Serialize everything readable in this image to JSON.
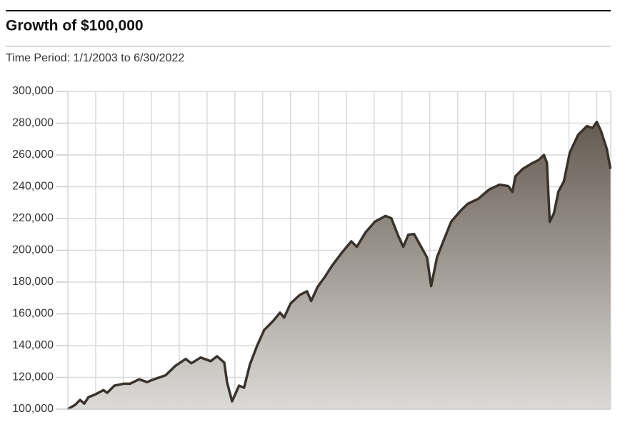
{
  "chart_data": {
    "type": "area",
    "title": "Growth of $100,000",
    "subtitle": "Time Period: 1/1/2003 to 6/30/2022",
    "x": [
      2003.0,
      2003.26,
      2003.44,
      2003.59,
      2003.74,
      2004.0,
      2004.28,
      2004.41,
      2004.67,
      2005.0,
      2005.23,
      2005.56,
      2005.85,
      2006.0,
      2006.51,
      2006.85,
      2007.23,
      2007.44,
      2007.77,
      2008.13,
      2008.36,
      2008.62,
      2008.72,
      2008.9,
      2009.15,
      2009.33,
      2009.54,
      2009.79,
      2010.05,
      2010.36,
      2010.62,
      2010.77,
      2011.0,
      2011.33,
      2011.59,
      2011.74,
      2011.97,
      2012.23,
      2012.49,
      2012.82,
      2013.18,
      2013.38,
      2013.69,
      2014.03,
      2014.41,
      2014.62,
      2014.87,
      2015.05,
      2015.23,
      2015.44,
      2015.69,
      2015.9,
      2016.05,
      2016.26,
      2016.51,
      2016.77,
      2017.1,
      2017.36,
      2017.74,
      2018.13,
      2018.51,
      2018.82,
      2018.97,
      2019.08,
      2019.33,
      2019.67,
      2019.92,
      2020.1,
      2020.21,
      2020.31,
      2020.46,
      2020.62,
      2020.82,
      2021.03,
      2021.33,
      2021.64,
      2021.85,
      2022.0,
      2022.15,
      2022.36,
      2022.49
    ],
    "series": [
      {
        "name": "Growth of $100,000",
        "color": "#3a332c",
        "values": [
          100000,
          102700,
          105800,
          103500,
          107500,
          109400,
          112000,
          110300,
          114800,
          116000,
          116000,
          118800,
          117000,
          118200,
          121300,
          127100,
          131600,
          128900,
          132500,
          130200,
          133300,
          129300,
          116900,
          104900,
          114800,
          113500,
          128200,
          139500,
          149800,
          155300,
          160700,
          157600,
          166500,
          171900,
          174200,
          168100,
          176900,
          183200,
          190300,
          198000,
          205600,
          202200,
          211200,
          218000,
          221600,
          220200,
          209000,
          202200,
          209800,
          210200,
          202200,
          195500,
          177500,
          195500,
          206700,
          218000,
          224700,
          229200,
          232400,
          238200,
          241300,
          240400,
          236800,
          246600,
          251100,
          254700,
          256900,
          260000,
          255000,
          217900,
          223300,
          236800,
          243500,
          261500,
          272700,
          278100,
          277000,
          280800,
          275000,
          263800,
          251300
        ]
      }
    ],
    "xlim": [
      2003,
      2022.5
    ],
    "xticks": [
      2003,
      2004,
      2005,
      2006,
      2007,
      2008,
      2009,
      2010,
      2011,
      2012,
      2013,
      2014,
      2015,
      2016,
      2017,
      2018,
      2019,
      2020,
      2021,
      2022
    ],
    "ylim": [
      100000,
      300000
    ],
    "yticks": [
      {
        "value": 100000,
        "label": "100,000"
      },
      {
        "value": 120000,
        "label": "120,000"
      },
      {
        "value": 140000,
        "label": "140,000"
      },
      {
        "value": 160000,
        "label": "160,000"
      },
      {
        "value": 180000,
        "label": "180,000"
      },
      {
        "value": 200000,
        "label": "200,000"
      },
      {
        "value": 220000,
        "label": "220,000"
      },
      {
        "value": 240000,
        "label": "240,000"
      },
      {
        "value": 260000,
        "label": "260,000"
      },
      {
        "value": 280000,
        "label": "280,000"
      },
      {
        "value": 300000,
        "label": "300,000"
      }
    ],
    "grid": true
  }
}
